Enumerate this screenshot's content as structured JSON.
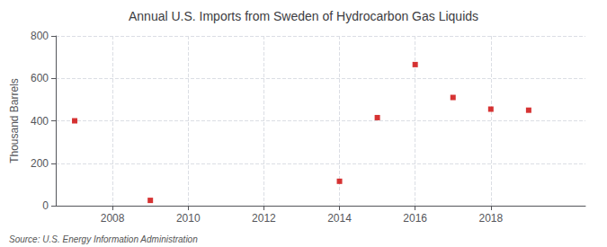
{
  "chart_data": {
    "type": "scatter",
    "title": "Annual U.S. Imports from Sweden of Hydrocarbon Gas Liquids",
    "ylabel": "Thousand Barrels",
    "annotation": "Source: U.S. Energy Information Administration",
    "x": [
      2007,
      2009,
      2014,
      2015,
      2016,
      2017,
      2018,
      2019
    ],
    "values": [
      400,
      25,
      115,
      415,
      665,
      510,
      455,
      450
    ],
    "color": "#cc0000",
    "marker": "square",
    "xlim": [
      2006.5,
      2020.5
    ],
    "ylim": [
      0,
      800
    ],
    "xticks": [
      2008,
      2010,
      2012,
      2014,
      2016,
      2018
    ],
    "yticks": [
      0,
      200,
      400,
      600,
      800
    ],
    "grid": true
  }
}
